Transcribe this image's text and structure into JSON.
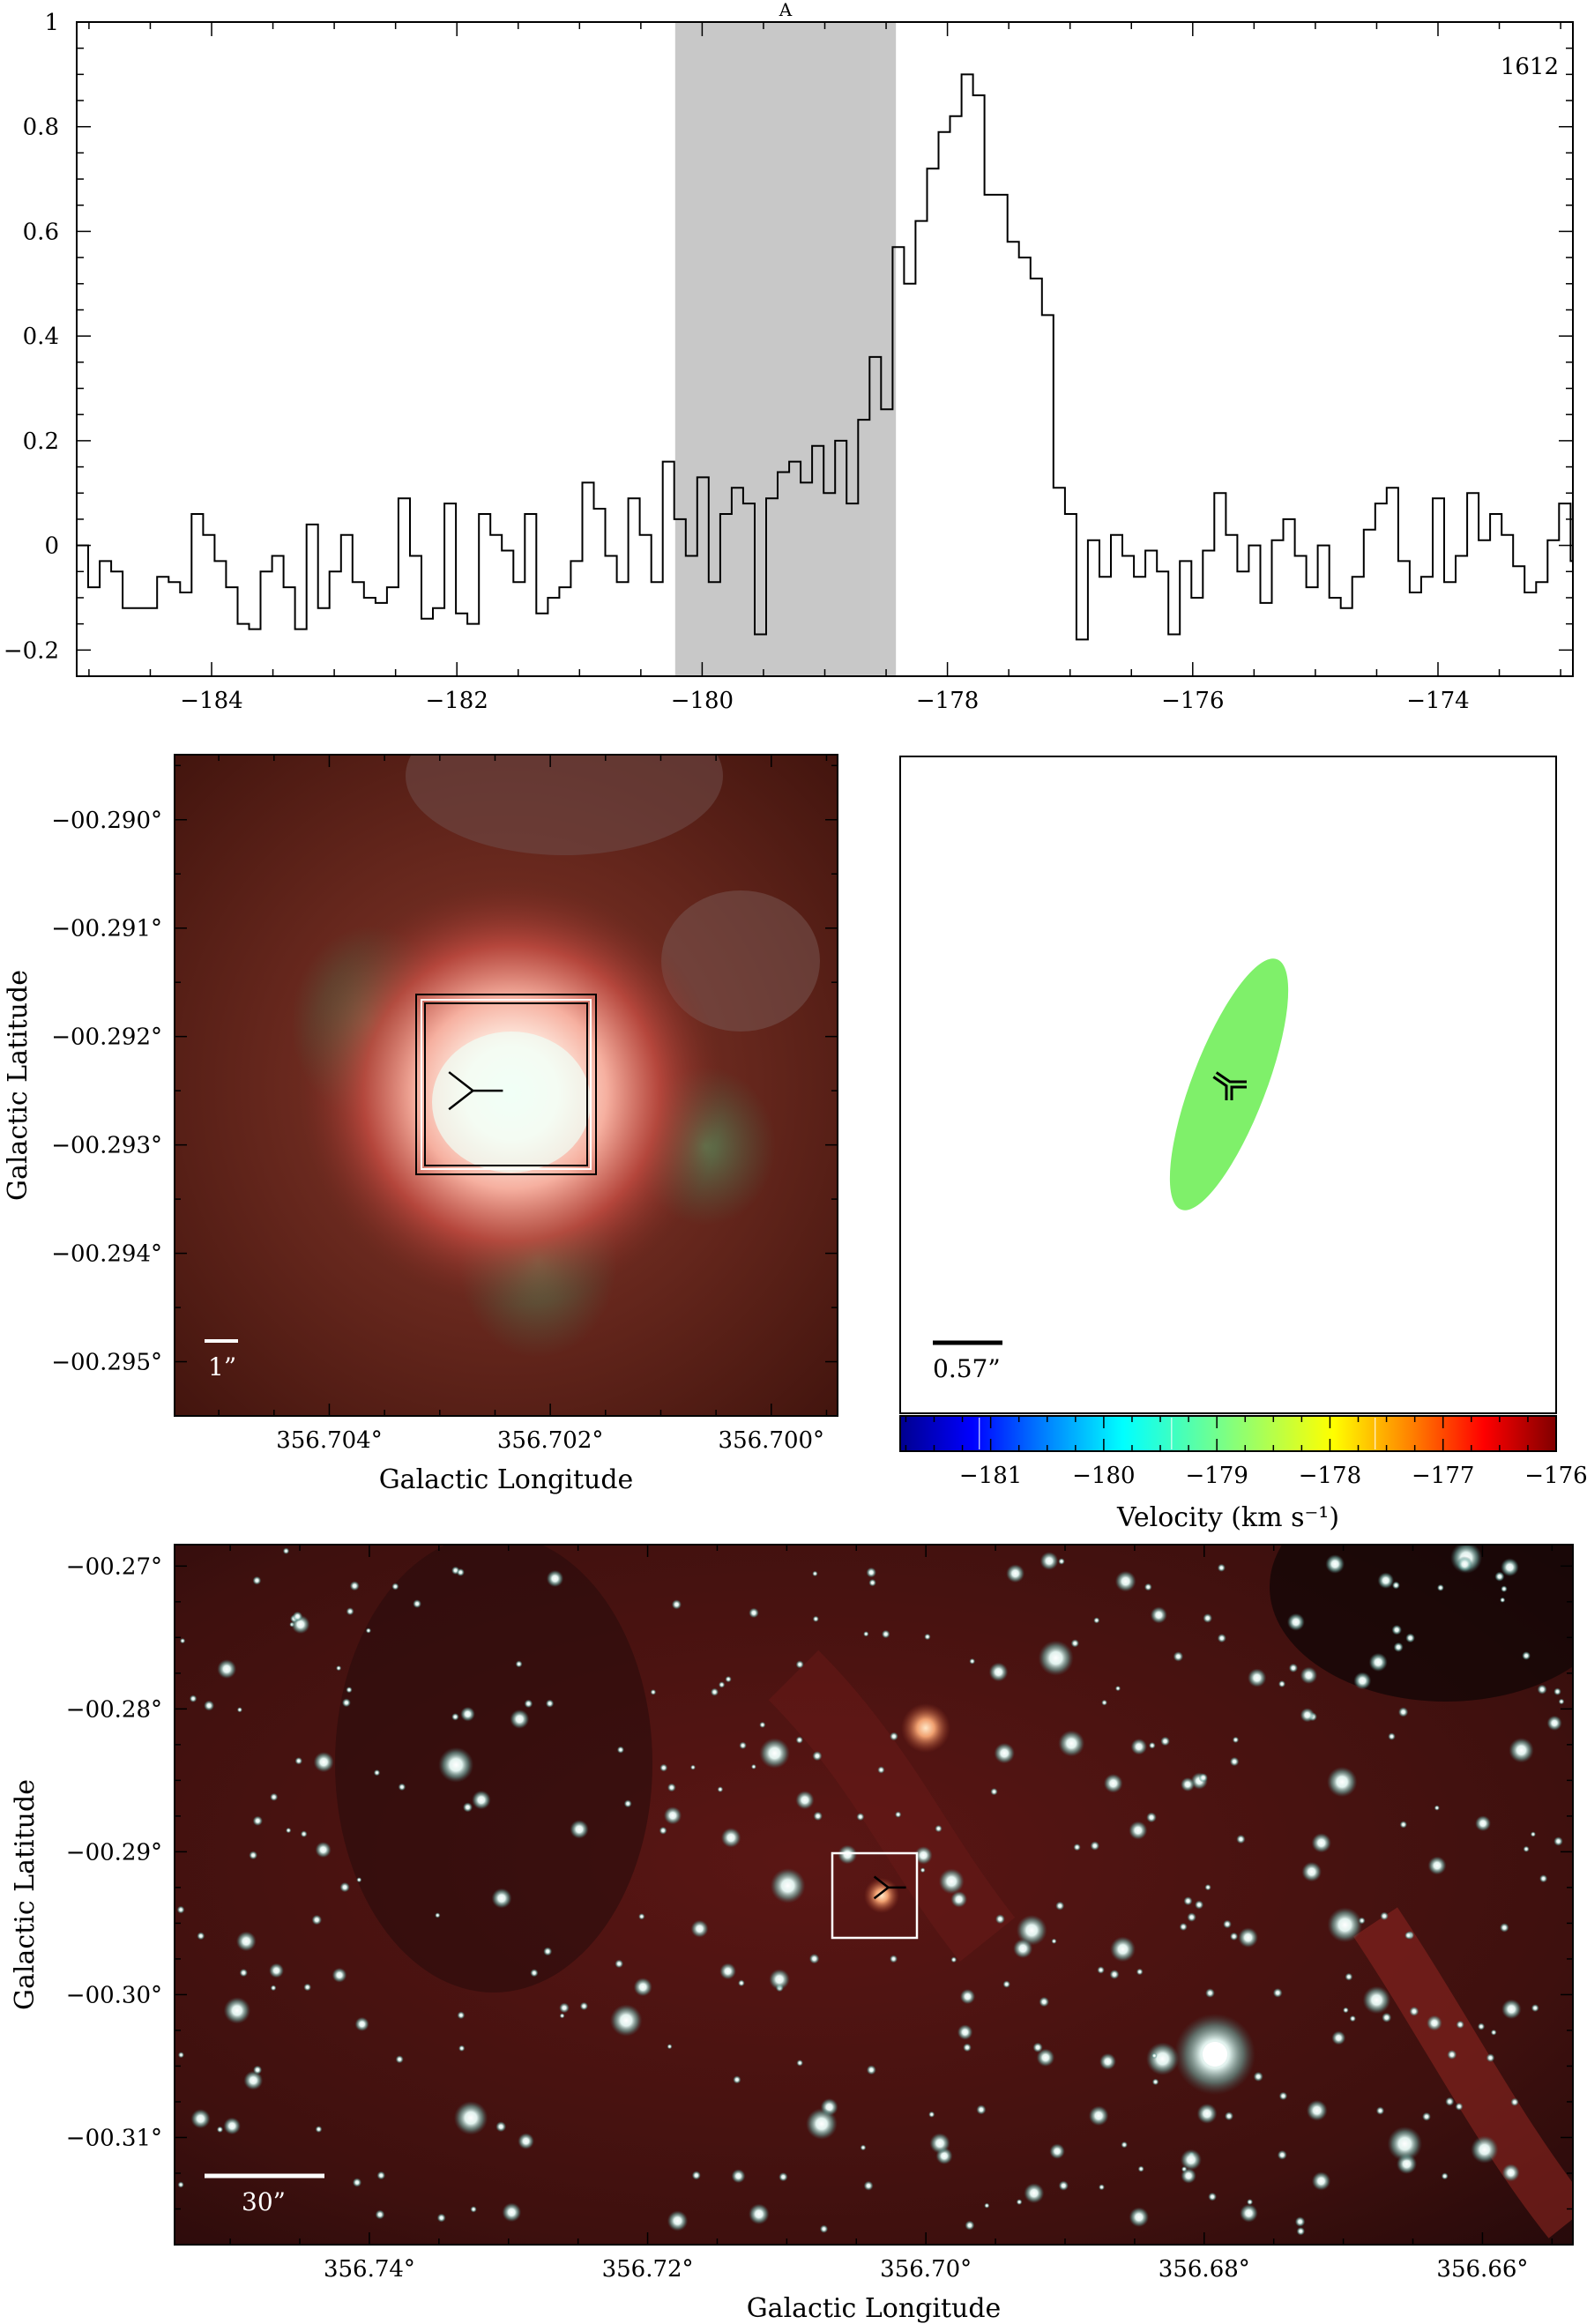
{
  "chart_data": [
    {
      "type": "line",
      "style": "step",
      "panel": "spectrum",
      "annotation_top": "A",
      "corner_label": "1612",
      "xlim": [
        -185.1,
        -172.9
      ],
      "ylim": [
        -0.25,
        1.0
      ],
      "xticks": [
        -184,
        -182,
        -180,
        -178,
        -176,
        -174
      ],
      "xtick_labels": [
        "−184",
        "−182",
        "−180",
        "−178",
        "−176",
        "−174"
      ],
      "yticks": [
        -0.2,
        0,
        0.2,
        0.4,
        0.6,
        0.8,
        1
      ],
      "ytick_labels": [
        "−0.2",
        "0",
        "0.2",
        "0.4",
        "0.6",
        "0.8",
        "1"
      ],
      "shaded_range": [
        -180.22,
        -178.42
      ],
      "shade_color": "#c8c8c8",
      "x_start": -185.1,
      "x_step": 0.0937,
      "values": [
        0.0,
        -0.08,
        -0.03,
        -0.05,
        -0.12,
        -0.12,
        -0.12,
        -0.06,
        -0.07,
        -0.09,
        0.06,
        0.02,
        -0.03,
        -0.08,
        -0.15,
        -0.16,
        -0.05,
        -0.02,
        -0.08,
        -0.16,
        0.04,
        -0.12,
        -0.05,
        0.02,
        -0.07,
        -0.1,
        -0.11,
        -0.08,
        0.09,
        -0.02,
        -0.14,
        -0.12,
        0.08,
        -0.13,
        -0.15,
        0.06,
        0.02,
        -0.01,
        -0.07,
        0.06,
        -0.13,
        -0.1,
        -0.08,
        -0.03,
        0.12,
        0.07,
        -0.02,
        -0.07,
        0.09,
        0.02,
        -0.07,
        0.16,
        0.05,
        -0.02,
        0.13,
        -0.07,
        0.06,
        0.11,
        0.08,
        -0.17,
        0.09,
        0.14,
        0.16,
        0.12,
        0.19,
        0.1,
        0.2,
        0.08,
        0.24,
        0.36,
        0.26,
        0.57,
        0.5,
        0.62,
        0.72,
        0.79,
        0.82,
        0.9,
        0.86,
        0.67,
        0.67,
        0.58,
        0.55,
        0.51,
        0.44,
        0.11,
        0.06,
        -0.18,
        0.01,
        -0.06,
        0.02,
        -0.02,
        -0.06,
        -0.01,
        -0.05,
        -0.17,
        -0.03,
        -0.1,
        -0.01,
        0.1,
        0.02,
        -0.05,
        0.0,
        -0.11,
        0.01,
        0.05,
        -0.02,
        -0.08,
        0.0,
        -0.1,
        -0.12,
        -0.06,
        0.03,
        0.08,
        0.11,
        -0.03,
        -0.09,
        -0.06,
        0.09,
        -0.07,
        -0.02,
        0.1,
        0.01,
        0.06,
        0.02,
        -0.04,
        -0.09,
        -0.07,
        0.01,
        0.08,
        -0.03,
        0.11,
        0.02,
        -0.05,
        0.13,
        -0.03,
        -0.11,
        -0.02,
        0.03,
        0.1,
        0.04,
        0.05,
        -0.01,
        0.11,
        -0.05
      ]
    },
    {
      "type": "image",
      "panel": "zoom",
      "xlabel": "Galactic Longitude",
      "ylabel": "Galactic Latitude",
      "xlim": [
        356.7054,
        356.6994
      ],
      "ylim": [
        -0.2955,
        -0.2894
      ],
      "xticks": [
        356.704,
        356.702,
        356.7
      ],
      "xtick_labels": [
        "356.704°",
        "356.702°",
        "356.700°"
      ],
      "yticks": [
        -0.29,
        -0.291,
        -0.292,
        -0.293,
        -0.294,
        -0.295
      ],
      "ytick_labels": [
        "−00.290°",
        "−00.291°",
        "−00.292°",
        "−00.293°",
        "−00.294°",
        "−00.295°"
      ],
      "scale_bar_label": "1”",
      "box_center": [
        356.7027,
        -0.2925
      ],
      "marker": [
        356.7027,
        -0.2925
      ]
    },
    {
      "type": "scatter",
      "panel": "velocity",
      "scale_bar_label": "0.57”",
      "colorbar_label": "Velocity (km s⁻¹)",
      "colorbar_range": [
        -181.8,
        -176.0
      ],
      "colorbar_ticks": [
        -181,
        -180,
        -179,
        -178,
        -177,
        -176
      ],
      "colorbar_tick_labels": [
        "−181",
        "−180",
        "−179",
        "−178",
        "−177",
        "−176"
      ],
      "ellipse_color": "#7ff06a",
      "spot_velocity": -179.05
    },
    {
      "type": "image",
      "panel": "wide",
      "xlabel": "Galactic Longitude",
      "ylabel": "Galactic Latitude",
      "xlim": [
        356.754,
        356.6535
      ],
      "ylim": [
        -0.3175,
        -0.2685
      ],
      "xticks": [
        356.74,
        356.72,
        356.7,
        356.68,
        356.66
      ],
      "xtick_labels": [
        "356.74°",
        "356.72°",
        "356.70°",
        "356.68°",
        "356.66°"
      ],
      "yticks": [
        -0.27,
        -0.28,
        -0.29,
        -0.3,
        -0.31
      ],
      "ytick_labels": [
        "−00.27°",
        "−00.28°",
        "−00.29°",
        "−00.30°",
        "−00.31°"
      ],
      "scale_bar_label": "30”",
      "box_center": [
        356.7027,
        -0.2925
      ],
      "marker": [
        356.7027,
        -0.2925
      ],
      "bright_sources": [
        [
          356.7,
          -0.2805
        ],
        [
          356.6797,
          -0.3045
        ],
        [
          356.7018,
          -0.2926
        ]
      ]
    }
  ]
}
